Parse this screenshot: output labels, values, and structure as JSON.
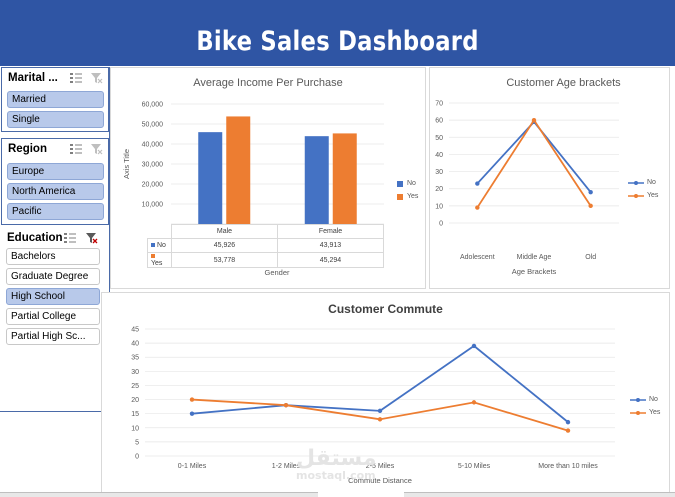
{
  "header": {
    "title": "Bike Sales Dashboard",
    "color": "#2f55a4"
  },
  "slicers": {
    "marital": {
      "title": "Marital ...",
      "items": [
        {
          "label": "Married",
          "selected": true
        },
        {
          "label": "Single",
          "selected": true
        }
      ]
    },
    "region": {
      "title": "Region",
      "items": [
        {
          "label": "Europe",
          "selected": true
        },
        {
          "label": "North America",
          "selected": true
        },
        {
          "label": "Pacific",
          "selected": true
        }
      ]
    },
    "education": {
      "title": "Education",
      "items": [
        {
          "label": "Bachelors",
          "selected": false
        },
        {
          "label": "Graduate Degree",
          "selected": false
        },
        {
          "label": "High School",
          "selected": true
        },
        {
          "label": "Partial College",
          "selected": false
        },
        {
          "label": "Partial High Sc...",
          "selected": false
        }
      ]
    },
    "icons": [
      "multi-select-icon",
      "clear-filter-icon"
    ]
  },
  "chart_data": [
    {
      "type": "bar",
      "title": "Average Income Per Purchase",
      "xlabel": "Gender",
      "ylabel": "Axis Title",
      "categories": [
        "Male",
        "Female"
      ],
      "series": [
        {
          "name": "No",
          "values": [
            45926,
            43913
          ],
          "labels": [
            "45,926",
            "43,913"
          ],
          "color": "#4472c4"
        },
        {
          "name": "Yes",
          "values": [
            53778,
            45294
          ],
          "labels": [
            "53,778",
            "45,294"
          ],
          "color": "#ed7d31"
        }
      ],
      "yticks": [
        "60,000",
        "50,000",
        "40,000",
        "30,000",
        "20,000",
        "10,000",
        "-"
      ],
      "ylim": [
        0,
        60000
      ],
      "legend": "right",
      "data_table": true
    },
    {
      "type": "line",
      "title": "Customer Age  brackets",
      "xlabel": "Age Brackets",
      "categories": [
        "Adolescent",
        "Middle Age",
        "Old"
      ],
      "series": [
        {
          "name": "No",
          "values": [
            23,
            59,
            18
          ],
          "color": "#4472c4"
        },
        {
          "name": "Yes",
          "values": [
            9,
            60,
            10
          ],
          "color": "#ed7d31"
        }
      ],
      "yticks": [
        "70",
        "60",
        "50",
        "40",
        "30",
        "20",
        "10",
        "0"
      ],
      "ylim": [
        0,
        70
      ],
      "legend": "right"
    },
    {
      "type": "line",
      "title": "Customer Commute",
      "xlabel": "Commute Distance",
      "categories": [
        "0-1 Miles",
        "1-2 Miles",
        "2-5 Miles",
        "5-10 Miles",
        "More than 10 miles"
      ],
      "series": [
        {
          "name": "No",
          "values": [
            15,
            18,
            16,
            39,
            12
          ],
          "color": "#4472c4"
        },
        {
          "name": "Yes",
          "values": [
            20,
            18,
            13,
            19,
            9
          ],
          "color": "#ed7d31"
        }
      ],
      "yticks": [
        "45",
        "40",
        "35",
        "30",
        "25",
        "20",
        "15",
        "10",
        "5",
        "0"
      ],
      "ylim": [
        0,
        45
      ],
      "legend": "right"
    }
  ],
  "watermark": {
    "arabic": "مستقل",
    "latin": "mostaql.com"
  }
}
